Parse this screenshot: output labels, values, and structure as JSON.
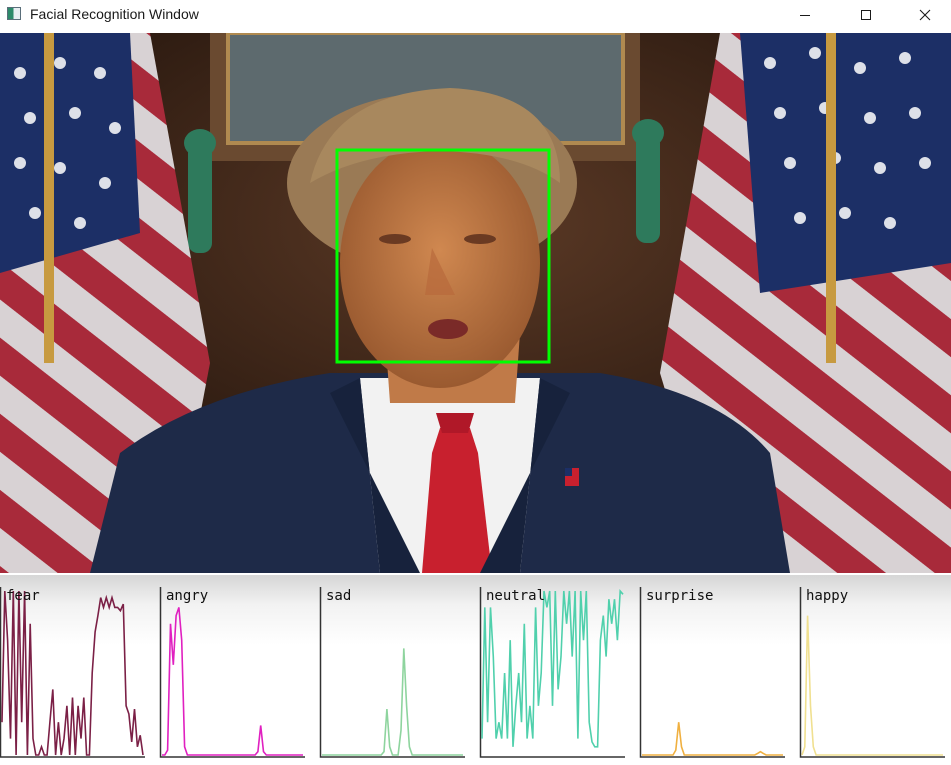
{
  "window": {
    "title": "Facial Recognition Window",
    "icons": {
      "app": "app-icon",
      "minimize": "minimize-icon",
      "maximize": "maximize-icon",
      "close": "close-icon"
    }
  },
  "video": {
    "description_icon": "video-frame",
    "detection": {
      "color": "#00ff00",
      "label": "face-bounding-box"
    }
  },
  "graphs": [
    {
      "label": "fear",
      "color": "#7b2046",
      "values": [
        0.2,
        1.0,
        0.7,
        0.1,
        1.0,
        0.0,
        1.0,
        0.2,
        1.0,
        0.0,
        0.8,
        0.1,
        0.0,
        0.0,
        0.05,
        0.0,
        0.0,
        0.2,
        0.4,
        0.0,
        0.2,
        0.0,
        0.1,
        0.3,
        0.0,
        0.35,
        0.0,
        0.3,
        0.1,
        0.35,
        0.0,
        0.0,
        0.5,
        0.75,
        0.85,
        0.96,
        0.9,
        0.96,
        0.9,
        0.96,
        0.9,
        0.9,
        0.88,
        0.92,
        0.3,
        0.25,
        0.08,
        0.28,
        0.05,
        0.12,
        0.0
      ]
    },
    {
      "label": "angry",
      "color": "#e020c0",
      "values": [
        0.0,
        0.0,
        0.03,
        0.8,
        0.55,
        0.85,
        0.9,
        0.7,
        0.05,
        0.0,
        0.0,
        0.0,
        0.0,
        0.0,
        0.0,
        0.0,
        0.0,
        0.0,
        0.0,
        0.0,
        0.0,
        0.0,
        0.0,
        0.0,
        0.0,
        0.0,
        0.0,
        0.0,
        0.0,
        0.0,
        0.0,
        0.0,
        0.0,
        0.0,
        0.02,
        0.18,
        0.02,
        0.0,
        0.0,
        0.0,
        0.0,
        0.0,
        0.0,
        0.0,
        0.0,
        0.0,
        0.0,
        0.0,
        0.0,
        0.0,
        0.0
      ]
    },
    {
      "label": "sad",
      "color": "#8ed49e",
      "values": [
        0.0,
        0.0,
        0.0,
        0.0,
        0.0,
        0.0,
        0.0,
        0.0,
        0.0,
        0.0,
        0.0,
        0.0,
        0.0,
        0.0,
        0.0,
        0.0,
        0.0,
        0.0,
        0.0,
        0.0,
        0.0,
        0.0,
        0.02,
        0.28,
        0.05,
        0.0,
        0.0,
        0.0,
        0.15,
        0.65,
        0.3,
        0.05,
        0.0,
        0.0,
        0.0,
        0.0,
        0.0,
        0.0,
        0.0,
        0.0,
        0.0,
        0.0,
        0.0,
        0.0,
        0.0,
        0.0,
        0.0,
        0.0,
        0.0,
        0.0,
        0.0
      ]
    },
    {
      "label": "neutral",
      "color": "#50d0ac",
      "values": [
        0.1,
        0.9,
        0.2,
        0.9,
        0.6,
        0.1,
        0.2,
        0.1,
        0.5,
        0.1,
        0.7,
        0.05,
        0.3,
        0.5,
        0.2,
        0.8,
        0.1,
        0.3,
        0.1,
        0.9,
        0.3,
        0.5,
        1.0,
        0.9,
        1.0,
        0.3,
        1.0,
        0.4,
        0.6,
        1.0,
        0.8,
        1.0,
        0.6,
        1.0,
        0.1,
        1.0,
        0.7,
        1.0,
        0.2,
        0.08,
        0.05,
        0.05,
        0.7,
        0.85,
        0.6,
        0.95,
        0.8,
        0.95,
        0.7,
        1.0,
        0.98
      ]
    },
    {
      "label": "surprise",
      "color": "#f0b040",
      "values": [
        0.0,
        0.0,
        0.0,
        0.0,
        0.0,
        0.0,
        0.0,
        0.0,
        0.0,
        0.0,
        0.0,
        0.0,
        0.03,
        0.2,
        0.05,
        0.0,
        0.0,
        0.0,
        0.0,
        0.0,
        0.0,
        0.0,
        0.0,
        0.0,
        0.0,
        0.0,
        0.0,
        0.0,
        0.0,
        0.0,
        0.0,
        0.0,
        0.0,
        0.0,
        0.0,
        0.0,
        0.0,
        0.0,
        0.0,
        0.0,
        0.0,
        0.01,
        0.02,
        0.01,
        0.0,
        0.0,
        0.0,
        0.0,
        0.0,
        0.0,
        0.0
      ]
    },
    {
      "label": "happy",
      "color": "#f0e090",
      "values": [
        0.0,
        0.05,
        0.85,
        0.3,
        0.05,
        0.0,
        0.0,
        0.0,
        0.0,
        0.0,
        0.0,
        0.0,
        0.0,
        0.0,
        0.0,
        0.0,
        0.0,
        0.0,
        0.0,
        0.0,
        0.0,
        0.0,
        0.0,
        0.0,
        0.0,
        0.0,
        0.0,
        0.0,
        0.0,
        0.0,
        0.0,
        0.0,
        0.0,
        0.0,
        0.0,
        0.0,
        0.0,
        0.0,
        0.0,
        0.0,
        0.0,
        0.0,
        0.0,
        0.0,
        0.0,
        0.0,
        0.0,
        0.0,
        0.0,
        0.0,
        0.0
      ]
    }
  ]
}
